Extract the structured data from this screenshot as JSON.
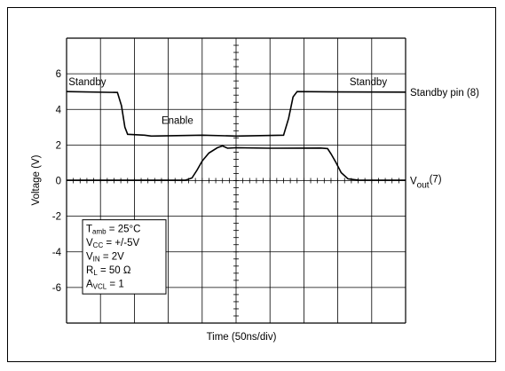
{
  "chart_data": {
    "type": "line",
    "title": "",
    "xlabel": "Time (50ns/div)",
    "ylabel": "Voltage (V)",
    "xlim": [
      0,
      10
    ],
    "ylim": [
      -8,
      8
    ],
    "x_divisions": 10,
    "y_tick_labels": [
      "6",
      "4",
      "2",
      "0",
      "-2",
      "-4",
      "-6"
    ],
    "y_ticks": [
      6,
      4,
      2,
      0,
      -2,
      -4,
      -6
    ],
    "grid": true,
    "series": [
      {
        "name": "Standby pin (8)",
        "points": [
          [
            0,
            5.0
          ],
          [
            1.5,
            4.95
          ],
          [
            1.62,
            4.2
          ],
          [
            1.72,
            3.0
          ],
          [
            1.8,
            2.6
          ],
          [
            2.3,
            2.55
          ],
          [
            2.5,
            2.5
          ],
          [
            4.0,
            2.55
          ],
          [
            5.0,
            2.5
          ],
          [
            6.4,
            2.55
          ],
          [
            6.55,
            3.5
          ],
          [
            6.68,
            4.7
          ],
          [
            6.8,
            5.0
          ],
          [
            8.0,
            4.98
          ],
          [
            10.0,
            4.97
          ]
        ],
        "labels": [
          "Standby",
          "Enable",
          "Standby"
        ]
      },
      {
        "name_main": "V",
        "name_sub": "out",
        "name_suffix": "(7)",
        "points": [
          [
            0,
            0.02
          ],
          [
            3.5,
            0.02
          ],
          [
            3.7,
            0.15
          ],
          [
            3.85,
            0.6
          ],
          [
            4.0,
            1.1
          ],
          [
            4.2,
            1.55
          ],
          [
            4.45,
            1.85
          ],
          [
            4.6,
            1.95
          ],
          [
            4.75,
            1.82
          ],
          [
            5.0,
            1.85
          ],
          [
            6.0,
            1.82
          ],
          [
            7.5,
            1.83
          ],
          [
            7.7,
            1.8
          ],
          [
            7.8,
            1.5
          ],
          [
            7.95,
            1.0
          ],
          [
            8.1,
            0.45
          ],
          [
            8.3,
            0.1
          ],
          [
            8.6,
            0.03
          ],
          [
            10.0,
            0.02
          ]
        ]
      }
    ],
    "annotation_box": [
      {
        "main": "T",
        "sub": "amb",
        "rest": " = 25°C"
      },
      {
        "main": "V",
        "sub": "CC",
        "rest": " = +/-5V"
      },
      {
        "main": "V",
        "sub": "IN",
        "rest": " = 2V"
      },
      {
        "main": "R",
        "sub": "L",
        "rest": " = 50 Ω"
      },
      {
        "main": "A",
        "sub": "VCL",
        "rest": " = 1"
      }
    ]
  }
}
